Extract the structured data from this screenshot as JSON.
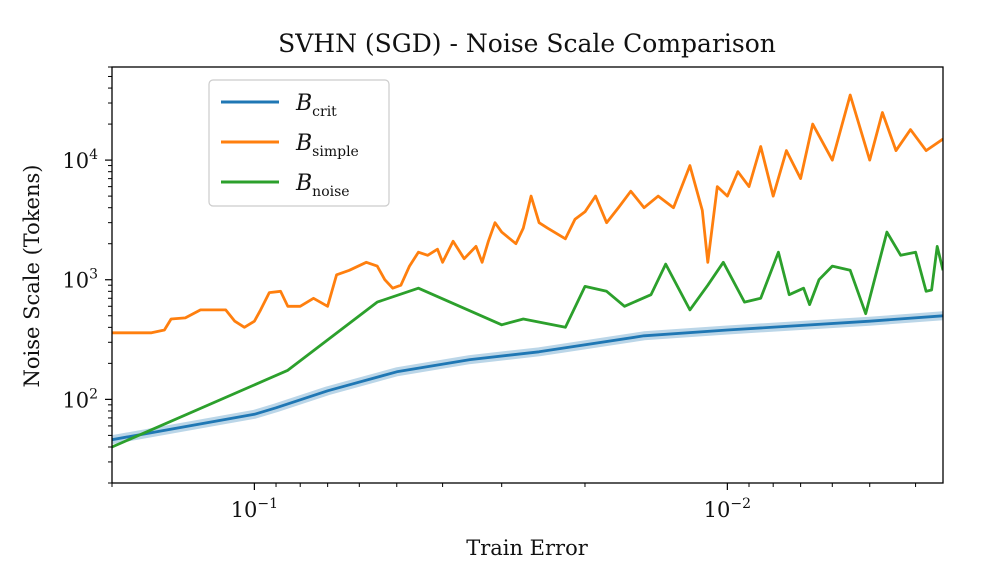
{
  "chart_data": {
    "type": "line",
    "title": "SVHN (SGD) - Noise Scale Comparison",
    "xlabel": "Train Error",
    "ylabel": "Noise Scale (Tokens)",
    "x_scale": "log",
    "x_inverted": true,
    "y_scale": "log",
    "xlim": [
      0.2,
      0.0035
    ],
    "ylim": [
      20,
      60000
    ],
    "x_ticks": [
      {
        "value": 0.1,
        "base": "10",
        "exp": "−1"
      },
      {
        "value": 0.01,
        "base": "10",
        "exp": "−2"
      }
    ],
    "y_ticks": [
      {
        "value": 100,
        "base": "10",
        "exp": "2"
      },
      {
        "value": 1000,
        "base": "10",
        "exp": "3"
      },
      {
        "value": 10000,
        "base": "10",
        "exp": "4"
      }
    ],
    "grid": false,
    "legend_position": "upper-left",
    "series": [
      {
        "name": "B",
        "sub": "crit",
        "color": "#1f77b4",
        "band": true,
        "points": [
          [
            0.2,
            46
          ],
          [
            0.1,
            75
          ],
          [
            0.09,
            85
          ],
          [
            0.07,
            118
          ],
          [
            0.05,
            170
          ],
          [
            0.035,
            215
          ],
          [
            0.025,
            250
          ],
          [
            0.015,
            340
          ],
          [
            0.01,
            380
          ],
          [
            0.005,
            450
          ],
          [
            0.0035,
            500
          ]
        ]
      },
      {
        "name": "B",
        "sub": "simple",
        "color": "#ff7f0e",
        "band": false,
        "points": [
          [
            0.2,
            360
          ],
          [
            0.165,
            360
          ],
          [
            0.155,
            380
          ],
          [
            0.15,
            470
          ],
          [
            0.14,
            480
          ],
          [
            0.13,
            560
          ],
          [
            0.115,
            560
          ],
          [
            0.11,
            450
          ],
          [
            0.105,
            400
          ],
          [
            0.1,
            450
          ],
          [
            0.097,
            560
          ],
          [
            0.093,
            780
          ],
          [
            0.088,
            800
          ],
          [
            0.085,
            600
          ],
          [
            0.08,
            600
          ],
          [
            0.075,
            700
          ],
          [
            0.07,
            600
          ],
          [
            0.067,
            1100
          ],
          [
            0.063,
            1200
          ],
          [
            0.058,
            1400
          ],
          [
            0.055,
            1300
          ],
          [
            0.053,
            1000
          ],
          [
            0.051,
            850
          ],
          [
            0.049,
            900
          ],
          [
            0.047,
            1300
          ],
          [
            0.045,
            1700
          ],
          [
            0.043,
            1600
          ],
          [
            0.041,
            1800
          ],
          [
            0.04,
            1400
          ],
          [
            0.038,
            2100
          ],
          [
            0.036,
            1500
          ],
          [
            0.034,
            1900
          ],
          [
            0.033,
            1400
          ],
          [
            0.032,
            2100
          ],
          [
            0.031,
            3000
          ],
          [
            0.03,
            2500
          ],
          [
            0.028,
            2000
          ],
          [
            0.027,
            2700
          ],
          [
            0.026,
            5000
          ],
          [
            0.025,
            3000
          ],
          [
            0.024,
            2700
          ],
          [
            0.022,
            2200
          ],
          [
            0.021,
            3200
          ],
          [
            0.02,
            3700
          ],
          [
            0.019,
            5000
          ],
          [
            0.018,
            3000
          ],
          [
            0.017,
            4000
          ],
          [
            0.016,
            5500
          ],
          [
            0.015,
            4000
          ],
          [
            0.014,
            5000
          ],
          [
            0.013,
            4000
          ],
          [
            0.012,
            9000
          ],
          [
            0.0113,
            3800
          ],
          [
            0.011,
            1400
          ],
          [
            0.0105,
            6000
          ],
          [
            0.01,
            5000
          ],
          [
            0.0095,
            8000
          ],
          [
            0.009,
            6000
          ],
          [
            0.0085,
            13000
          ],
          [
            0.008,
            5000
          ],
          [
            0.0075,
            12000
          ],
          [
            0.007,
            7000
          ],
          [
            0.0066,
            20000
          ],
          [
            0.006,
            10000
          ],
          [
            0.0055,
            35000
          ],
          [
            0.005,
            10000
          ],
          [
            0.0047,
            25000
          ],
          [
            0.0044,
            12000
          ],
          [
            0.0041,
            18000
          ],
          [
            0.0038,
            12000
          ],
          [
            0.0035,
            15000
          ]
        ]
      },
      {
        "name": "B",
        "sub": "noise",
        "color": "#2ca02c",
        "band": false,
        "points": [
          [
            0.2,
            40
          ],
          [
            0.085,
            175
          ],
          [
            0.055,
            650
          ],
          [
            0.045,
            850
          ],
          [
            0.03,
            420
          ],
          [
            0.027,
            470
          ],
          [
            0.022,
            400
          ],
          [
            0.02,
            880
          ],
          [
            0.018,
            800
          ],
          [
            0.0165,
            600
          ],
          [
            0.0145,
            750
          ],
          [
            0.0135,
            1350
          ],
          [
            0.012,
            560
          ],
          [
            0.011,
            900
          ],
          [
            0.0102,
            1400
          ],
          [
            0.0092,
            650
          ],
          [
            0.0085,
            700
          ],
          [
            0.0078,
            1700
          ],
          [
            0.0074,
            750
          ],
          [
            0.0069,
            850
          ],
          [
            0.0067,
            620
          ],
          [
            0.0064,
            1000
          ],
          [
            0.006,
            1300
          ],
          [
            0.0055,
            1200
          ],
          [
            0.0051,
            520
          ],
          [
            0.0046,
            2500
          ],
          [
            0.0043,
            1600
          ],
          [
            0.004,
            1700
          ],
          [
            0.0038,
            800
          ],
          [
            0.0037,
            820
          ],
          [
            0.0036,
            1900
          ],
          [
            0.0035,
            1200
          ]
        ]
      }
    ]
  }
}
